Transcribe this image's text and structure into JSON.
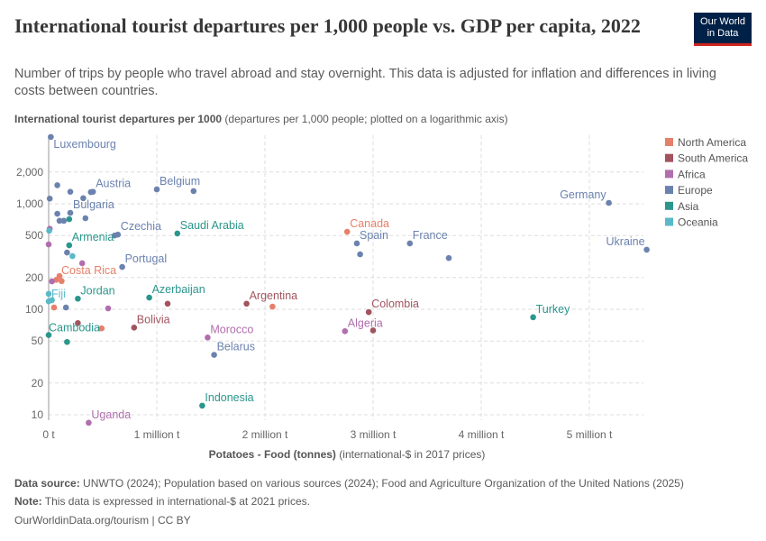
{
  "title": "International tourist departures per 1,000 people vs. GDP per capita, 2022",
  "subtitle": "Number of trips by people who travel abroad and stay overnight. This data is adjusted for inflation and differences in living costs between countries.",
  "logo": {
    "line1": "Our World",
    "line2": "in Data",
    "bg": "#002147",
    "accent": "#ce261e"
  },
  "footer": {
    "source_label": "Data source:",
    "source": "UNWTO (2024); Population based on various sources (2024); Food and Agriculture Organization of the United Nations (2025)",
    "note_label": "Note:",
    "note": "This data is expressed in international-$ at 2021 prices.",
    "credit": "OurWorldinData.org/tourism | CC BY"
  },
  "chart_data": {
    "type": "scatter",
    "title": "International tourist departures per 1,000 people vs. GDP per capita, 2022",
    "ylabel_bold": "International tourist departures per 1000",
    "ylabel_rest": "(departures per 1,000 people; plotted on a logarithmic axis)",
    "xlabel_bold": "Potatoes - Food (tonnes)",
    "xlabel_rest": "(international-$ in 2017 prices)",
    "x_scale": "linear",
    "y_scale": "log",
    "xlim": [
      0,
      5500000
    ],
    "ylim": [
      8,
      4500
    ],
    "x_ticks": [
      {
        "v": 0,
        "label": "0 t"
      },
      {
        "v": 1000000,
        "label": "1 million t"
      },
      {
        "v": 2000000,
        "label": "2 million t"
      },
      {
        "v": 3000000,
        "label": "3 million t"
      },
      {
        "v": 4000000,
        "label": "4 million t"
      },
      {
        "v": 5000000,
        "label": "5 million t"
      }
    ],
    "y_ticks": [
      {
        "v": 10,
        "label": "10"
      },
      {
        "v": 20,
        "label": "20"
      },
      {
        "v": 50,
        "label": "50"
      },
      {
        "v": 100,
        "label": "100"
      },
      {
        "v": 200,
        "label": "200"
      },
      {
        "v": 500,
        "label": "500"
      },
      {
        "v": 1000,
        "label": "1,000"
      },
      {
        "v": 2000,
        "label": "2,000"
      }
    ],
    "grid": true,
    "legend_position": "right",
    "legend": [
      {
        "name": "North America",
        "color": "#e6806a"
      },
      {
        "name": "South America",
        "color": "#a2545e"
      },
      {
        "name": "Africa",
        "color": "#b16eae"
      },
      {
        "name": "Europe",
        "color": "#6b82ae"
      },
      {
        "name": "Asia",
        "color": "#2a968c"
      },
      {
        "name": "Oceania",
        "color": "#5ab9c9"
      }
    ],
    "points": [
      {
        "label": "Luxembourg",
        "region": "Europe",
        "x": 20000,
        "y": 4300
      },
      {
        "label": "",
        "region": "Europe",
        "x": 10000,
        "y": 1120
      },
      {
        "label": "",
        "region": "Europe",
        "x": 80000,
        "y": 1500
      },
      {
        "label": "",
        "region": "Europe",
        "x": 200000,
        "y": 1300
      },
      {
        "label": "",
        "region": "Europe",
        "x": 320000,
        "y": 1130
      },
      {
        "label": "",
        "region": "Europe",
        "x": 390000,
        "y": 1290
      },
      {
        "label": "Austria",
        "region": "Europe",
        "x": 410000,
        "y": 1300
      },
      {
        "label": "Belgium",
        "region": "Europe",
        "x": 1000000,
        "y": 1370
      },
      {
        "label": "",
        "region": "Europe",
        "x": 1340000,
        "y": 1320
      },
      {
        "label": "",
        "region": "Europe",
        "x": 80000,
        "y": 805
      },
      {
        "label": "Bulgaria",
        "region": "Europe",
        "x": 200000,
        "y": 820
      },
      {
        "label": "",
        "region": "Europe",
        "x": 100000,
        "y": 690
      },
      {
        "label": "",
        "region": "Europe",
        "x": 140000,
        "y": 690
      },
      {
        "label": "",
        "region": "Europe",
        "x": 340000,
        "y": 730
      },
      {
        "label": "",
        "region": "Asia",
        "x": 190000,
        "y": 715
      },
      {
        "label": "",
        "region": "Africa",
        "x": 10000,
        "y": 580
      },
      {
        "label": "",
        "region": "Oceania",
        "x": 5000,
        "y": 555
      },
      {
        "label": "",
        "region": "Africa",
        "x": 0,
        "y": 412
      },
      {
        "label": "",
        "region": "Europe",
        "x": 610000,
        "y": 500
      },
      {
        "label": "Czechia",
        "region": "Europe",
        "x": 640000,
        "y": 510
      },
      {
        "label": "Saudi Arabia",
        "region": "Asia",
        "x": 1190000,
        "y": 523
      },
      {
        "label": "Armenia",
        "region": "Asia",
        "x": 190000,
        "y": 404
      },
      {
        "label": "",
        "region": "Europe",
        "x": 170000,
        "y": 345
      },
      {
        "label": "",
        "region": "Oceania",
        "x": 220000,
        "y": 319
      },
      {
        "label": "",
        "region": "Africa",
        "x": 310000,
        "y": 273
      },
      {
        "label": "Portugal",
        "region": "Europe",
        "x": 680000,
        "y": 252
      },
      {
        "label": "Costa Rica",
        "region": "North America",
        "x": 100000,
        "y": 207
      },
      {
        "label": "",
        "region": "North America",
        "x": 70000,
        "y": 190
      },
      {
        "label": "",
        "region": "North America",
        "x": 120000,
        "y": 185
      },
      {
        "label": "",
        "region": "Africa",
        "x": 30000,
        "y": 184
      },
      {
        "label": "Fiji",
        "region": "Oceania",
        "x": 0,
        "y": 140
      },
      {
        "label": "",
        "region": "Oceania",
        "x": 0,
        "y": 119
      },
      {
        "label": "",
        "region": "Oceania",
        "x": 30000,
        "y": 122
      },
      {
        "label": "Jordan",
        "region": "Asia",
        "x": 270000,
        "y": 126
      },
      {
        "label": "",
        "region": "North America",
        "x": 50000,
        "y": 104
      },
      {
        "label": "",
        "region": "Europe",
        "x": 160000,
        "y": 104
      },
      {
        "label": "",
        "region": "Africa",
        "x": 550000,
        "y": 102
      },
      {
        "label": "Azerbaijan",
        "region": "Asia",
        "x": 930000,
        "y": 129
      },
      {
        "label": "",
        "region": "South America",
        "x": 1100000,
        "y": 113
      },
      {
        "label": "Argentina",
        "region": "South America",
        "x": 1830000,
        "y": 113
      },
      {
        "label": "",
        "region": "North America",
        "x": 2070000,
        "y": 106
      },
      {
        "label": "Colombia",
        "region": "South America",
        "x": 2960000,
        "y": 94
      },
      {
        "label": "Canada",
        "region": "North America",
        "x": 2760000,
        "y": 543
      },
      {
        "label": "Spain",
        "region": "Europe",
        "x": 2850000,
        "y": 421
      },
      {
        "label": "",
        "region": "Europe",
        "x": 2880000,
        "y": 332
      },
      {
        "label": "France",
        "region": "Europe",
        "x": 3340000,
        "y": 421
      },
      {
        "label": "",
        "region": "Europe",
        "x": 3700000,
        "y": 306
      },
      {
        "label": "Germany",
        "region": "Europe",
        "x": 5180000,
        "y": 1020
      },
      {
        "label": "Ukraine",
        "region": "Europe",
        "x": 5530000,
        "y": 367
      },
      {
        "label": "Turkey",
        "region": "Asia",
        "x": 4480000,
        "y": 84
      },
      {
        "label": "Algeria",
        "region": "Africa",
        "x": 2740000,
        "y": 62
      },
      {
        "label": "",
        "region": "South America",
        "x": 3000000,
        "y": 63
      },
      {
        "label": "",
        "region": "South America",
        "x": 270000,
        "y": 74
      },
      {
        "label": "",
        "region": "North America",
        "x": 490000,
        "y": 66
      },
      {
        "label": "Bolivia",
        "region": "South America",
        "x": 790000,
        "y": 67
      },
      {
        "label": "Cambodia",
        "region": "Asia",
        "x": 0,
        "y": 57
      },
      {
        "label": "",
        "region": "Asia",
        "x": 170000,
        "y": 49
      },
      {
        "label": "Morocco",
        "region": "Africa",
        "x": 1470000,
        "y": 54
      },
      {
        "label": "Belarus",
        "region": "Europe",
        "x": 1530000,
        "y": 37
      },
      {
        "label": "Indonesia",
        "region": "Asia",
        "x": 1420000,
        "y": 12.2
      },
      {
        "label": "Uganda",
        "region": "Africa",
        "x": 370000,
        "y": 8.4
      }
    ]
  }
}
